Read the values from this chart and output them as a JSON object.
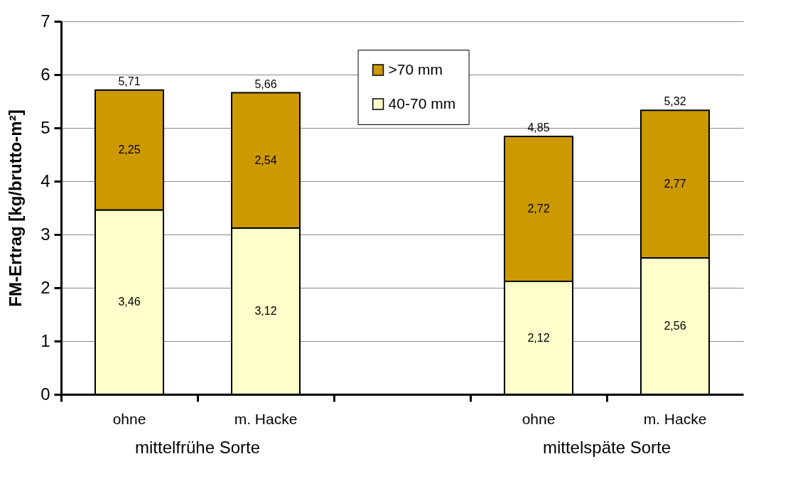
{
  "chart_data": {
    "type": "bar",
    "stacked": true,
    "ylabel": "FM-Ertrag [kg/brutto-m²]",
    "categories": [
      "ohne",
      "m. Hacke",
      null,
      "ohne",
      "m. Hacke"
    ],
    "series": [
      {
        "name": "40-70 mm",
        "color": "#ffffcc",
        "values": [
          3.46,
          3.12,
          null,
          2.12,
          2.56
        ],
        "value_labels": [
          "3,46",
          "3,12",
          null,
          "2,12",
          "2,56"
        ]
      },
      {
        "name": ">70 mm",
        "color": "#cc9900",
        "values": [
          2.25,
          2.54,
          null,
          2.72,
          2.77
        ],
        "value_labels": [
          "2,25",
          "2,54",
          null,
          "2,72",
          "2,77"
        ]
      }
    ],
    "totals": [
      "5,71",
      "5,66",
      null,
      "4,85",
      "5,32"
    ],
    "annotations": [
      "mittelfrühe Sorte",
      "mittelspäte Sorte"
    ],
    "ylim": [
      0,
      7
    ],
    "yticks": [
      0,
      1,
      2,
      3,
      4,
      5,
      6,
      7
    ],
    "grid": "y",
    "legend": "top"
  }
}
